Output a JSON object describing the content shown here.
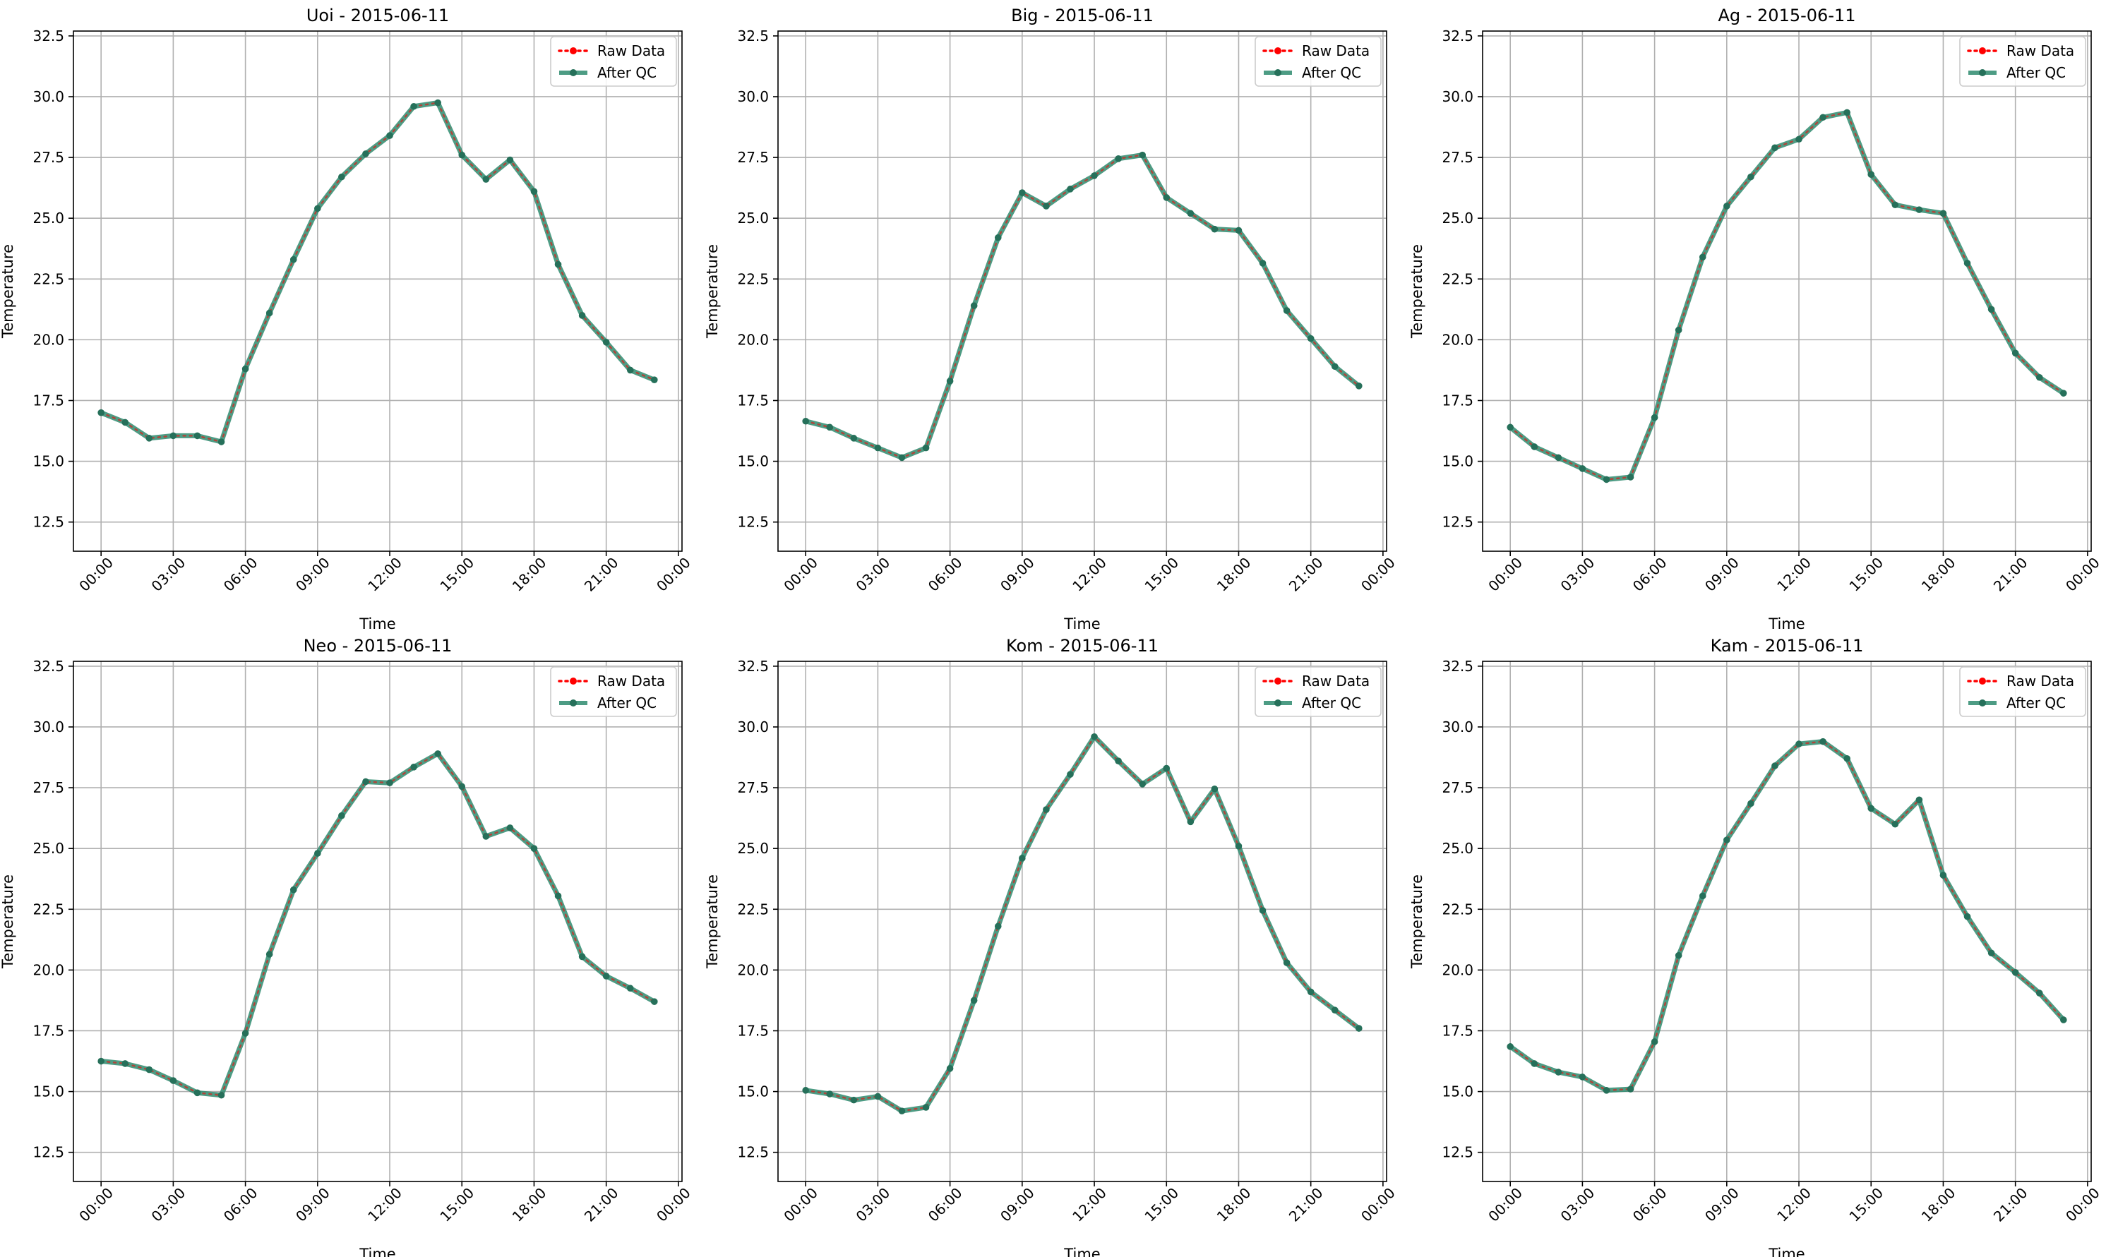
{
  "colors": {
    "raw": "#ff0000",
    "after_qc": "#2e8b6e",
    "grid": "#b0b0b0",
    "axes": "#000000"
  },
  "chart_data": [
    {
      "type": "line",
      "title": "Uoi - 2015-06-11",
      "xlabel": "Time",
      "ylabel": "Temperature",
      "ylim": [
        11.3,
        32.7
      ],
      "xlim_hours": [
        -1.15,
        24.15
      ],
      "yticks": [
        "12.5",
        "15.0",
        "17.5",
        "20.0",
        "22.5",
        "25.0",
        "27.5",
        "30.0",
        "32.5"
      ],
      "xticks": [
        "00:00",
        "03:00",
        "06:00",
        "09:00",
        "12:00",
        "15:00",
        "18:00",
        "21:00",
        "00:00"
      ],
      "grid": true,
      "legend_position": "top-right",
      "x": [
        "00:00",
        "01:00",
        "02:00",
        "03:00",
        "04:00",
        "05:00",
        "06:00",
        "07:00",
        "08:00",
        "09:00",
        "10:00",
        "11:00",
        "12:00",
        "13:00",
        "14:00",
        "15:00",
        "16:00",
        "17:00",
        "18:00",
        "19:00",
        "20:00",
        "21:00",
        "22:00",
        "23:00"
      ],
      "series": [
        {
          "name": "Raw Data",
          "values": [
            17.0,
            16.6,
            15.95,
            16.05,
            16.05,
            15.8,
            18.8,
            21.1,
            23.3,
            25.4,
            26.7,
            27.65,
            28.4,
            29.6,
            29.75,
            27.6,
            26.6,
            27.4,
            26.1,
            23.1,
            21.0,
            19.9,
            18.75,
            18.35
          ]
        },
        {
          "name": "After QC",
          "values": [
            17.0,
            16.6,
            15.95,
            16.05,
            16.05,
            15.8,
            18.8,
            21.1,
            23.3,
            25.4,
            26.7,
            27.65,
            28.4,
            29.6,
            29.75,
            27.6,
            26.6,
            27.4,
            26.1,
            23.1,
            21.0,
            19.9,
            18.75,
            18.35
          ]
        }
      ]
    },
    {
      "type": "line",
      "title": "Big - 2015-06-11",
      "xlabel": "Time",
      "ylabel": "Temperature",
      "ylim": [
        11.3,
        32.7
      ],
      "xlim_hours": [
        -1.15,
        24.15
      ],
      "yticks": [
        "12.5",
        "15.0",
        "17.5",
        "20.0",
        "22.5",
        "25.0",
        "27.5",
        "30.0",
        "32.5"
      ],
      "xticks": [
        "00:00",
        "03:00",
        "06:00",
        "09:00",
        "12:00",
        "15:00",
        "18:00",
        "21:00",
        "00:00"
      ],
      "grid": true,
      "legend_position": "top-right",
      "x": [
        "00:00",
        "01:00",
        "02:00",
        "03:00",
        "04:00",
        "05:00",
        "06:00",
        "07:00",
        "08:00",
        "09:00",
        "10:00",
        "11:00",
        "12:00",
        "13:00",
        "14:00",
        "15:00",
        "16:00",
        "17:00",
        "18:00",
        "19:00",
        "20:00",
        "21:00",
        "22:00",
        "23:00"
      ],
      "series": [
        {
          "name": "Raw Data",
          "values": [
            16.65,
            16.4,
            15.95,
            15.55,
            15.15,
            15.55,
            18.3,
            21.4,
            24.2,
            26.05,
            25.5,
            26.2,
            26.75,
            27.45,
            27.6,
            25.85,
            25.2,
            24.55,
            24.5,
            23.15,
            21.2,
            20.05,
            18.9,
            18.1
          ]
        },
        {
          "name": "After QC",
          "values": [
            16.65,
            16.4,
            15.95,
            15.55,
            15.15,
            15.55,
            18.3,
            21.4,
            24.2,
            26.05,
            25.5,
            26.2,
            26.75,
            27.45,
            27.6,
            25.85,
            25.2,
            24.55,
            24.5,
            23.15,
            21.2,
            20.05,
            18.9,
            18.1
          ]
        }
      ]
    },
    {
      "type": "line",
      "title": "Ag - 2015-06-11",
      "xlabel": "Time",
      "ylabel": "Temperature",
      "ylim": [
        11.3,
        32.7
      ],
      "xlim_hours": [
        -1.15,
        24.15
      ],
      "yticks": [
        "12.5",
        "15.0",
        "17.5",
        "20.0",
        "22.5",
        "25.0",
        "27.5",
        "30.0",
        "32.5"
      ],
      "xticks": [
        "00:00",
        "03:00",
        "06:00",
        "09:00",
        "12:00",
        "15:00",
        "18:00",
        "21:00",
        "00:00"
      ],
      "grid": true,
      "legend_position": "top-right",
      "x": [
        "00:00",
        "01:00",
        "02:00",
        "03:00",
        "04:00",
        "05:00",
        "06:00",
        "07:00",
        "08:00",
        "09:00",
        "10:00",
        "11:00",
        "12:00",
        "13:00",
        "14:00",
        "15:00",
        "16:00",
        "17:00",
        "18:00",
        "19:00",
        "20:00",
        "21:00",
        "22:00",
        "23:00"
      ],
      "series": [
        {
          "name": "Raw Data",
          "values": [
            16.4,
            15.6,
            15.15,
            14.7,
            14.25,
            14.35,
            16.8,
            20.4,
            23.4,
            25.5,
            26.7,
            27.9,
            28.25,
            29.15,
            29.35,
            26.8,
            25.55,
            25.35,
            25.2,
            23.15,
            21.25,
            19.45,
            18.45,
            17.8
          ]
        },
        {
          "name": "After QC",
          "values": [
            16.4,
            15.6,
            15.15,
            14.7,
            14.25,
            14.35,
            16.8,
            20.4,
            23.4,
            25.5,
            26.7,
            27.9,
            28.25,
            29.15,
            29.35,
            26.8,
            25.55,
            25.35,
            25.2,
            23.15,
            21.25,
            19.45,
            18.45,
            17.8
          ]
        }
      ]
    },
    {
      "type": "line",
      "title": "Neo - 2015-06-11",
      "xlabel": "Time",
      "ylabel": "Temperature",
      "ylim": [
        11.3,
        32.7
      ],
      "xlim_hours": [
        -1.15,
        24.15
      ],
      "yticks": [
        "12.5",
        "15.0",
        "17.5",
        "20.0",
        "22.5",
        "25.0",
        "27.5",
        "30.0",
        "32.5"
      ],
      "xticks": [
        "00:00",
        "03:00",
        "06:00",
        "09:00",
        "12:00",
        "15:00",
        "18:00",
        "21:00",
        "00:00"
      ],
      "grid": true,
      "legend_position": "top-right",
      "x": [
        "00:00",
        "01:00",
        "02:00",
        "03:00",
        "04:00",
        "05:00",
        "06:00",
        "07:00",
        "08:00",
        "09:00",
        "10:00",
        "11:00",
        "12:00",
        "13:00",
        "14:00",
        "15:00",
        "16:00",
        "17:00",
        "18:00",
        "19:00",
        "20:00",
        "21:00",
        "22:00",
        "23:00"
      ],
      "series": [
        {
          "name": "Raw Data",
          "values": [
            16.25,
            16.15,
            15.9,
            15.45,
            14.95,
            14.85,
            17.4,
            20.65,
            23.3,
            24.8,
            26.35,
            27.75,
            27.7,
            28.35,
            28.9,
            27.55,
            25.5,
            25.85,
            25.0,
            23.05,
            20.55,
            19.75,
            19.25,
            18.7
          ]
        },
        {
          "name": "After QC",
          "values": [
            16.25,
            16.15,
            15.9,
            15.45,
            14.95,
            14.85,
            17.4,
            20.65,
            23.3,
            24.8,
            26.35,
            27.75,
            27.7,
            28.35,
            28.9,
            27.55,
            25.5,
            25.85,
            25.0,
            23.05,
            20.55,
            19.75,
            19.25,
            18.7
          ]
        }
      ]
    },
    {
      "type": "line",
      "title": "Kom - 2015-06-11",
      "xlabel": "Time",
      "ylabel": "Temperature",
      "ylim": [
        11.3,
        32.7
      ],
      "xlim_hours": [
        -1.15,
        24.15
      ],
      "yticks": [
        "12.5",
        "15.0",
        "17.5",
        "20.0",
        "22.5",
        "25.0",
        "27.5",
        "30.0",
        "32.5"
      ],
      "xticks": [
        "00:00",
        "03:00",
        "06:00",
        "09:00",
        "12:00",
        "15:00",
        "18:00",
        "21:00",
        "00:00"
      ],
      "grid": true,
      "legend_position": "top-right",
      "x": [
        "00:00",
        "01:00",
        "02:00",
        "03:00",
        "04:00",
        "05:00",
        "06:00",
        "07:00",
        "08:00",
        "09:00",
        "10:00",
        "11:00",
        "12:00",
        "13:00",
        "14:00",
        "15:00",
        "16:00",
        "17:00",
        "18:00",
        "19:00",
        "20:00",
        "21:00",
        "22:00",
        "23:00"
      ],
      "series": [
        {
          "name": "Raw Data",
          "values": [
            15.05,
            14.9,
            14.65,
            14.8,
            14.2,
            14.35,
            15.95,
            18.75,
            21.8,
            24.6,
            26.6,
            28.05,
            29.6,
            28.6,
            27.65,
            28.3,
            26.1,
            27.45,
            25.1,
            22.45,
            20.3,
            19.1,
            18.35,
            17.6
          ]
        },
        {
          "name": "After QC",
          "values": [
            15.05,
            14.9,
            14.65,
            14.8,
            14.2,
            14.35,
            15.95,
            18.75,
            21.8,
            24.6,
            26.6,
            28.05,
            29.6,
            28.6,
            27.65,
            28.3,
            26.1,
            27.45,
            25.1,
            22.45,
            20.3,
            19.1,
            18.35,
            17.6
          ]
        }
      ]
    },
    {
      "type": "line",
      "title": "Kam - 2015-06-11",
      "xlabel": "Time",
      "ylabel": "Temperature",
      "ylim": [
        11.3,
        32.7
      ],
      "xlim_hours": [
        -1.15,
        24.15
      ],
      "yticks": [
        "12.5",
        "15.0",
        "17.5",
        "20.0",
        "22.5",
        "25.0",
        "27.5",
        "30.0",
        "32.5"
      ],
      "xticks": [
        "00:00",
        "03:00",
        "06:00",
        "09:00",
        "12:00",
        "15:00",
        "18:00",
        "21:00",
        "00:00"
      ],
      "grid": true,
      "legend_position": "top-right",
      "x": [
        "00:00",
        "01:00",
        "02:00",
        "03:00",
        "04:00",
        "05:00",
        "06:00",
        "07:00",
        "08:00",
        "09:00",
        "10:00",
        "11:00",
        "12:00",
        "13:00",
        "14:00",
        "15:00",
        "16:00",
        "17:00",
        "18:00",
        "19:00",
        "20:00",
        "21:00",
        "22:00",
        "23:00"
      ],
      "series": [
        {
          "name": "Raw Data",
          "values": [
            16.85,
            16.15,
            15.8,
            15.6,
            15.05,
            15.1,
            17.05,
            20.6,
            23.05,
            25.35,
            26.85,
            28.4,
            29.3,
            29.4,
            28.7,
            26.65,
            26.0,
            27.0,
            23.9,
            22.2,
            20.7,
            19.9,
            19.05,
            17.95
          ]
        },
        {
          "name": "After QC",
          "values": [
            16.85,
            16.15,
            15.8,
            15.6,
            15.05,
            15.1,
            17.05,
            20.6,
            23.05,
            25.35,
            26.85,
            28.4,
            29.3,
            29.4,
            28.7,
            26.65,
            26.0,
            27.0,
            23.9,
            22.2,
            20.7,
            19.9,
            19.05,
            17.95
          ]
        }
      ]
    }
  ]
}
